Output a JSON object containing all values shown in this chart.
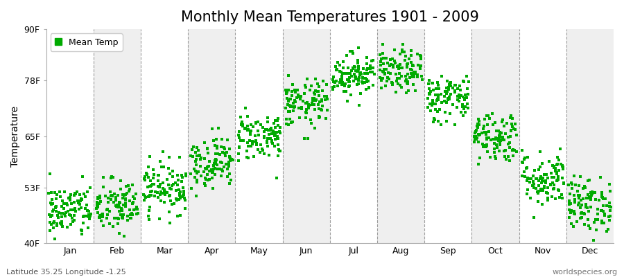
{
  "title": "Monthly Mean Temperatures 1901 - 2009",
  "ylabel": "Temperature",
  "ytick_labels": [
    "40F",
    "53F",
    "65F",
    "78F",
    "90F"
  ],
  "ytick_values": [
    40,
    53,
    65,
    78,
    90
  ],
  "ylim": [
    40,
    90
  ],
  "months": [
    "Jan",
    "Feb",
    "Mar",
    "Apr",
    "May",
    "Jun",
    "Jul",
    "Aug",
    "Sep",
    "Oct",
    "Nov",
    "Dec"
  ],
  "mean_temps_F": [
    47.5,
    48.5,
    53.0,
    59.0,
    65.0,
    72.5,
    79.5,
    80.0,
    74.0,
    65.0,
    55.0,
    49.0
  ],
  "std_temps_F": [
    3.2,
    3.2,
    3.0,
    3.0,
    2.8,
    2.8,
    2.5,
    2.5,
    2.8,
    3.0,
    3.2,
    3.2
  ],
  "n_years": 109,
  "marker_color": "#00AA00",
  "marker_size": 2.5,
  "bg_color": "#FFFFFF",
  "plot_bg_color": "#FFFFFF",
  "band_color_odd": "#FFFFFF",
  "band_color_even": "#EFEFEF",
  "dashed_line_color": "#888888",
  "legend_label": "Mean Temp",
  "footer_left": "Latitude 35.25 Longitude -1.25",
  "footer_right": "worldspecies.org",
  "title_fontsize": 15,
  "label_fontsize": 10,
  "tick_fontsize": 9,
  "footer_fontsize": 8
}
